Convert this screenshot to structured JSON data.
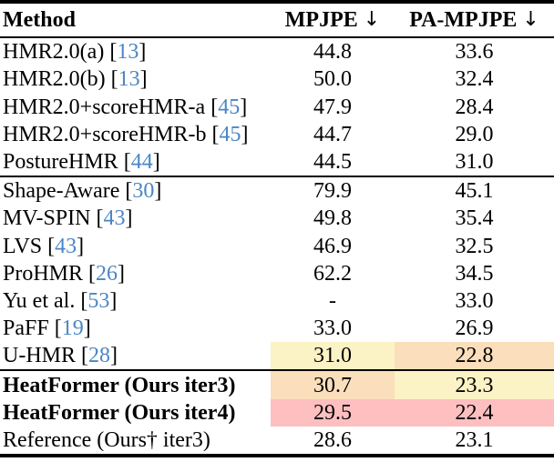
{
  "colors": {
    "text": "#000000",
    "rule": "#000000",
    "cite_blue": "#4A86C6",
    "highlight_yellow": "#FBF3C5",
    "highlight_orange": "#FBDEBB",
    "highlight_pink": "#FEBFC0"
  },
  "table": {
    "header": {
      "method_label": "Method",
      "mpjpe_label": "MPJPE",
      "mpjpe_arrow": "↓",
      "pa_mpjpe_label": "PA-MPJPE",
      "pa_mpjpe_arrow": "↓"
    },
    "sections": [
      {
        "rows": [
          {
            "method": "HMR2.0(a)",
            "cite": "13",
            "bold": false,
            "mpjpe": "44.8",
            "mpjpe_bg": null,
            "pa_mpjpe": "33.6",
            "pa_bg": null
          },
          {
            "method": "HMR2.0(b)",
            "cite": "13",
            "bold": false,
            "mpjpe": "50.0",
            "mpjpe_bg": null,
            "pa_mpjpe": "32.4",
            "pa_bg": null
          },
          {
            "method": "HMR2.0+scoreHMR-a",
            "cite": "45",
            "bold": false,
            "mpjpe": "47.9",
            "mpjpe_bg": null,
            "pa_mpjpe": "28.4",
            "pa_bg": null
          },
          {
            "method": "HMR2.0+scoreHMR-b",
            "cite": "45",
            "bold": false,
            "mpjpe": "44.7",
            "mpjpe_bg": null,
            "pa_mpjpe": "29.0",
            "pa_bg": null
          },
          {
            "method": "PostureHMR",
            "cite": "44",
            "bold": false,
            "mpjpe": "44.5",
            "mpjpe_bg": null,
            "pa_mpjpe": "31.0",
            "pa_bg": null
          }
        ]
      },
      {
        "rows": [
          {
            "method": "Shape-Aware",
            "cite": "30",
            "bold": false,
            "mpjpe": "79.9",
            "mpjpe_bg": null,
            "pa_mpjpe": "45.1",
            "pa_bg": null
          },
          {
            "method": "MV-SPIN",
            "cite": "43",
            "bold": false,
            "mpjpe": "49.8",
            "mpjpe_bg": null,
            "pa_mpjpe": "35.4",
            "pa_bg": null
          },
          {
            "method": "LVS",
            "cite": "43",
            "bold": false,
            "mpjpe": "46.9",
            "mpjpe_bg": null,
            "pa_mpjpe": "32.5",
            "pa_bg": null
          },
          {
            "method": "ProHMR",
            "cite": "26",
            "bold": false,
            "mpjpe": "62.2",
            "mpjpe_bg": null,
            "pa_mpjpe": "34.5",
            "pa_bg": null
          },
          {
            "method": "Yu et al.",
            "cite": "53",
            "bold": false,
            "mpjpe": "-",
            "mpjpe_bg": null,
            "pa_mpjpe": "33.0",
            "pa_bg": null
          },
          {
            "method": "PaFF",
            "cite": "19",
            "bold": false,
            "mpjpe": "33.0",
            "mpjpe_bg": null,
            "pa_mpjpe": "26.9",
            "pa_bg": null
          },
          {
            "method": "U-HMR",
            "cite": "28",
            "bold": false,
            "mpjpe": "31.0",
            "mpjpe_bg": "highlight_yellow",
            "pa_mpjpe": "22.8",
            "pa_bg": "highlight_orange"
          }
        ]
      },
      {
        "rows": [
          {
            "method": "HeatFormer (Ours iter3)",
            "cite": null,
            "bold": true,
            "mpjpe": "30.7",
            "mpjpe_bg": "highlight_orange",
            "pa_mpjpe": "23.3",
            "pa_bg": "highlight_yellow"
          },
          {
            "method": "HeatFormer (Ours iter4)",
            "cite": null,
            "bold": true,
            "mpjpe": "29.5",
            "mpjpe_bg": "highlight_pink",
            "pa_mpjpe": "22.4",
            "pa_bg": "highlight_pink"
          },
          {
            "method": "Reference (Ours† iter3)",
            "cite": null,
            "bold": false,
            "mpjpe": "28.6",
            "mpjpe_bg": null,
            "pa_mpjpe": "23.1",
            "pa_bg": null
          }
        ]
      }
    ]
  }
}
